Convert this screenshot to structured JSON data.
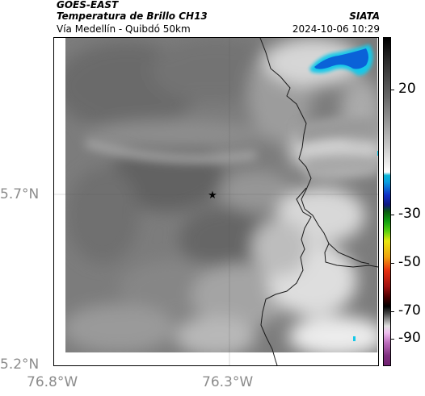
{
  "header": {
    "satellite": "GOES-EAST",
    "product": "Temperatura de Brillo CH13",
    "location": "Vía Medellín - Quibdó 50km",
    "organization": "SIATA",
    "timestamp": "2024-10-06 10:29"
  },
  "axes": {
    "lat_labels": [
      "5.7°N",
      "5.2°N"
    ],
    "lon_labels": [
      "76.8°W",
      "76.3°W"
    ],
    "gridlines": true
  },
  "colorbar": {
    "ticks": [
      "20",
      "-30",
      "-50",
      "-70",
      "-90"
    ]
  },
  "map": {
    "marker_symbol": "★",
    "cloud_colors": {
      "warm_dark": "#5a5a5a",
      "mid": "#8a8a8a",
      "cold_light": "#e6e6e6",
      "deep_cold": "#0a62d8",
      "cyan_edge": "#16c8e8"
    }
  }
}
